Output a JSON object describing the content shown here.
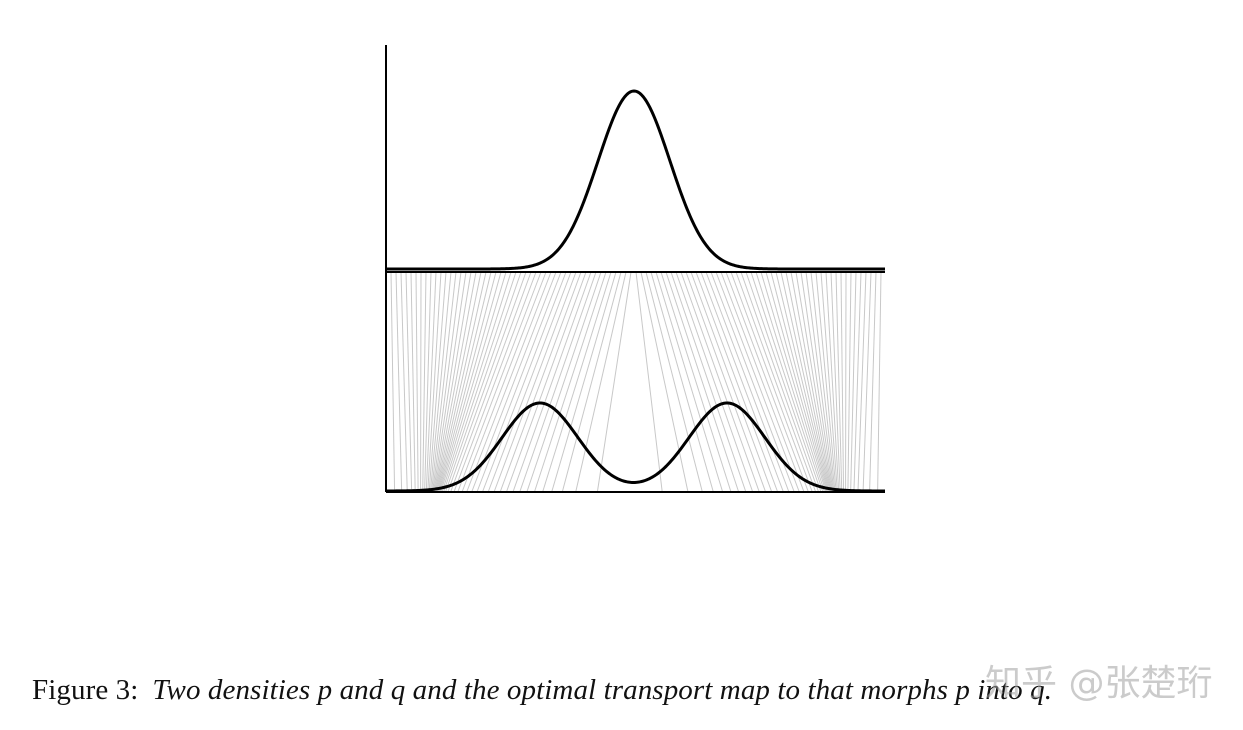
{
  "figure": {
    "caption_label": "Figure 3:",
    "caption_text": "Two densities p and q and the optimal transport map to that morphs p into q.",
    "watermark": "知乎 @张楚珩",
    "curve_color": "#000000",
    "map_line_color": "#c8c8c8"
  }
}
